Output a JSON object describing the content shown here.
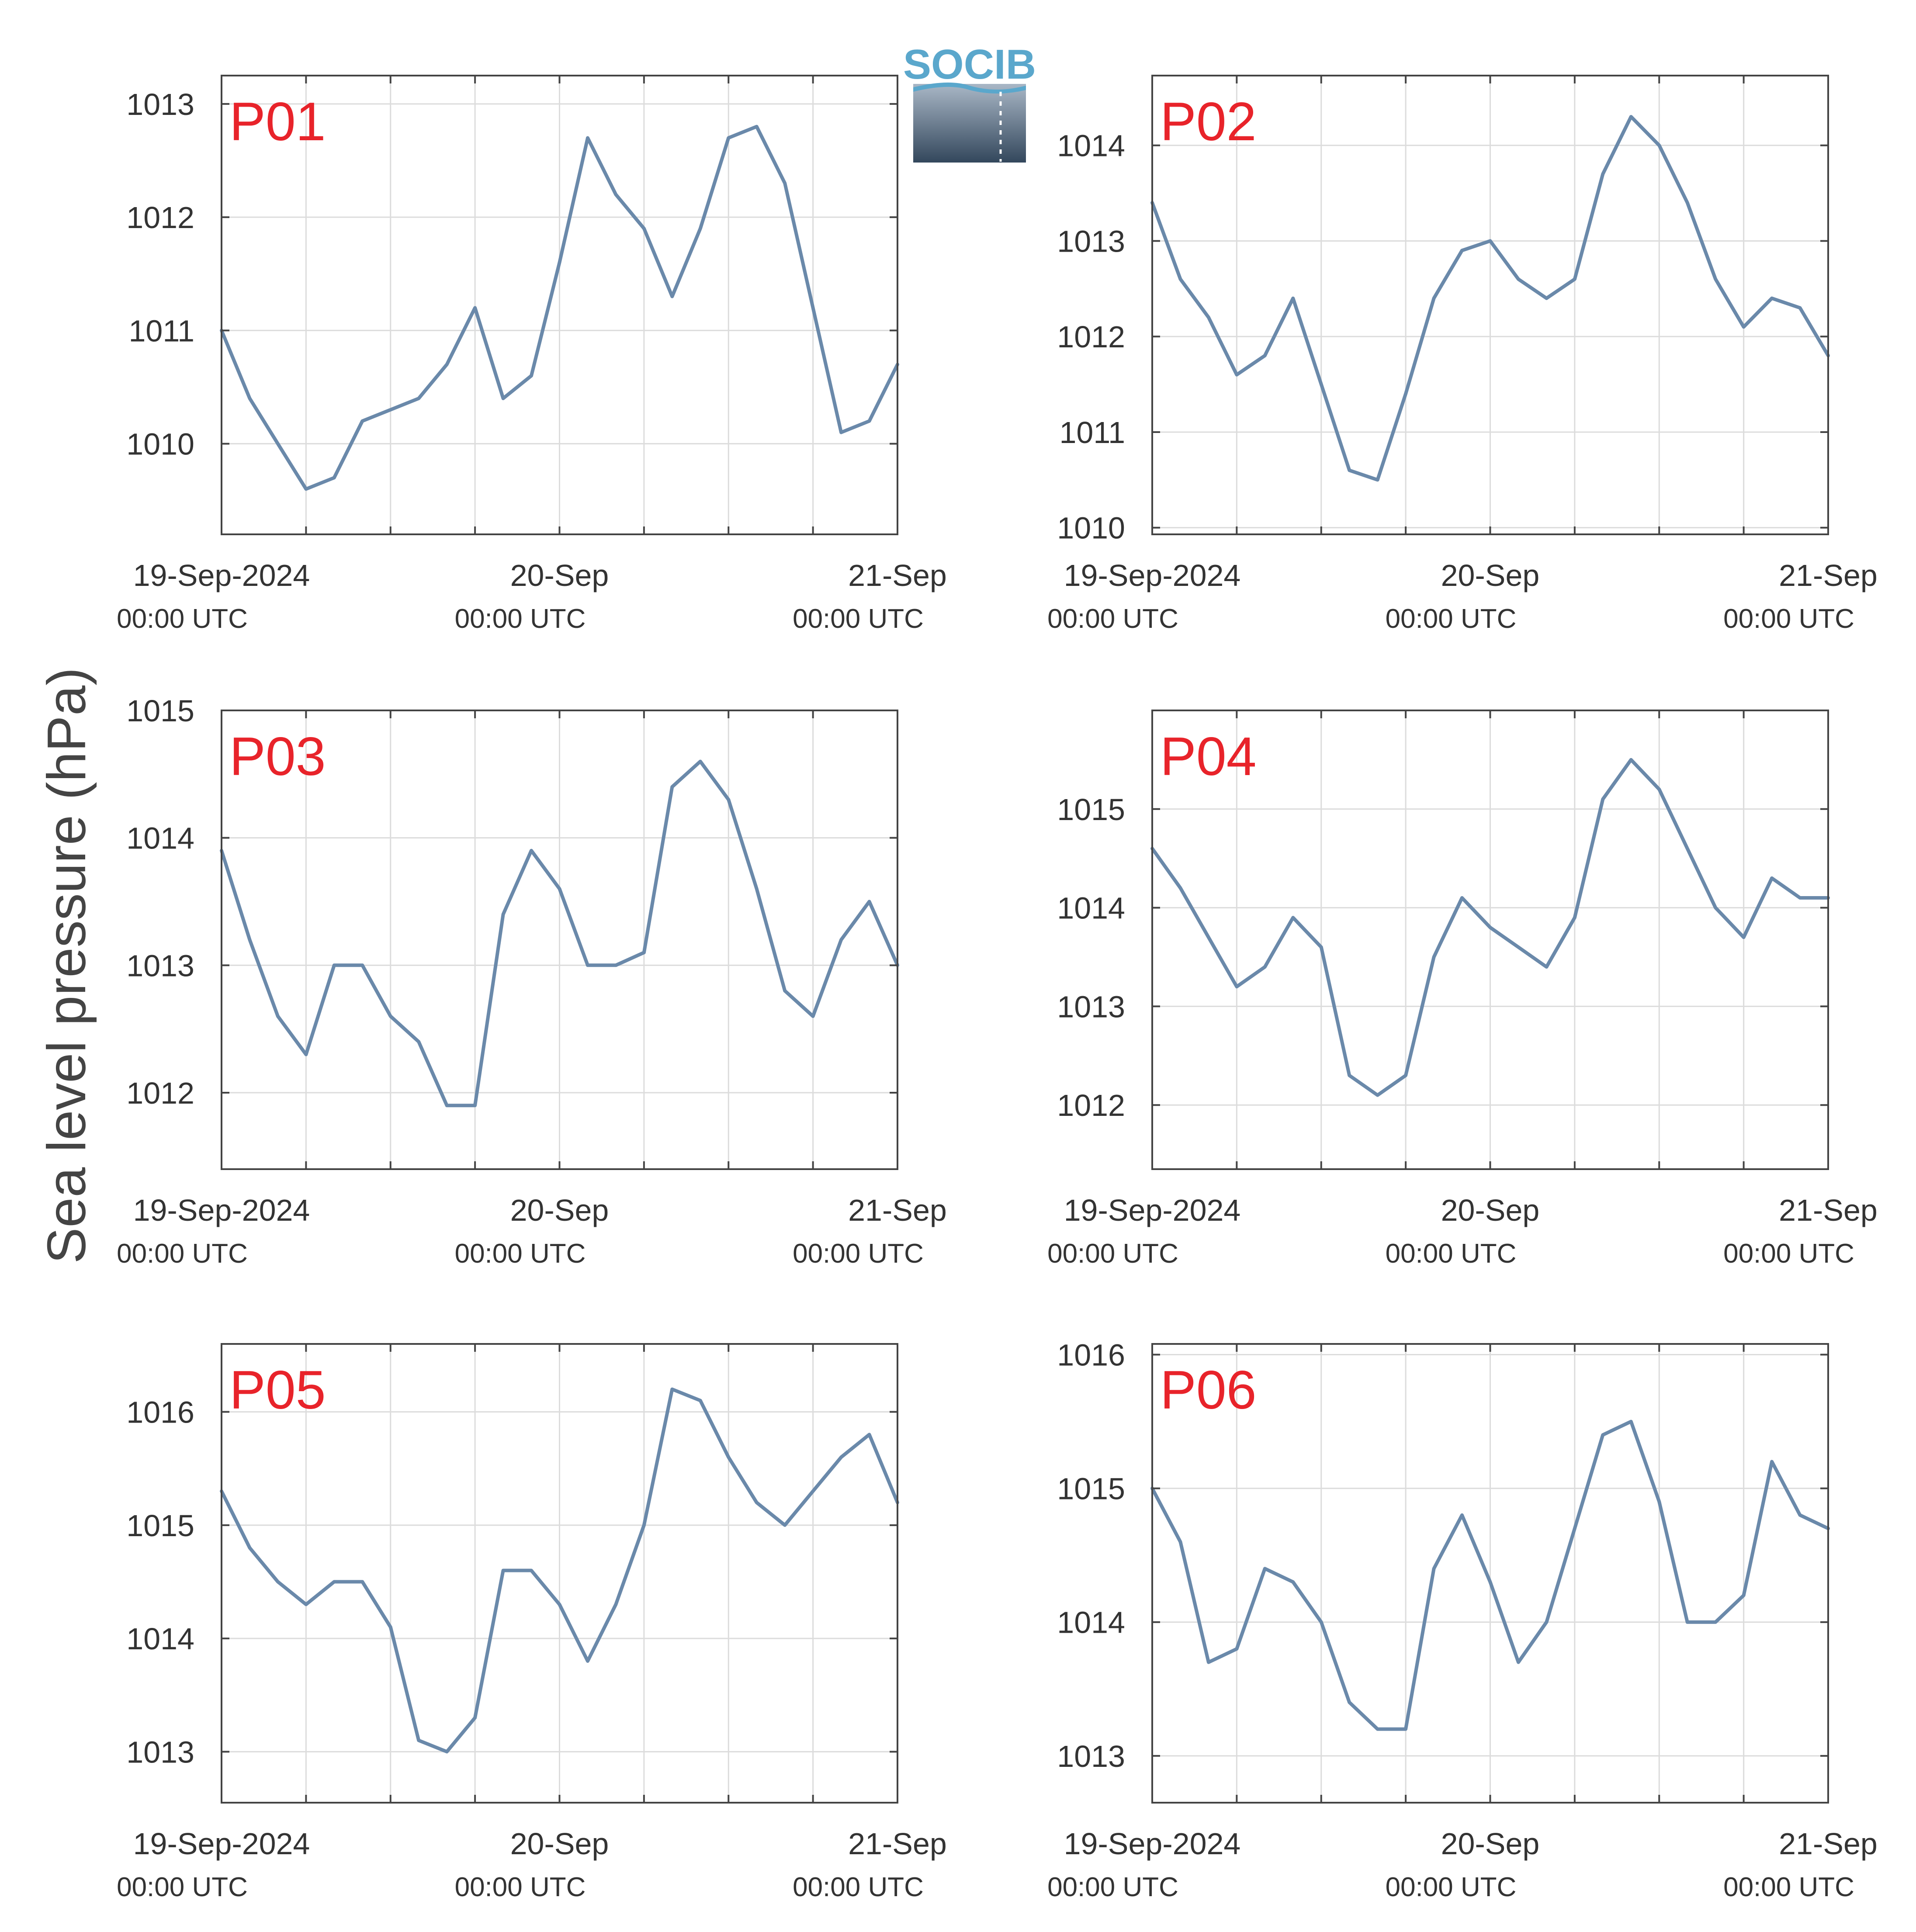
{
  "ylabel": "Sea level pressure (hPa)",
  "logo": {
    "text": "SOCIB"
  },
  "colors": {
    "line": "#6a89aa",
    "panel_label": "#e8232a",
    "grid": "#dcdcdc",
    "axis": "#444444",
    "logo_top": "#5aa7cc",
    "logo_bottom": "#33475c"
  },
  "x_ticks": [
    {
      "main": "19-Sep-2024",
      "sub": "00:00 UTC"
    },
    {
      "main": "20-Sep",
      "sub": "00:00 UTC"
    },
    {
      "main": "21-Sep",
      "sub": "00:00 UTC"
    }
  ],
  "chart_data": [
    {
      "type": "line",
      "title": "P01",
      "grid": true,
      "xlim": [
        "2024-09-19 00:00",
        "2024-09-21 00:00"
      ],
      "ylim": [
        1009.2,
        1013.25
      ],
      "yticks": [
        1010,
        1011,
        1012,
        1013
      ],
      "x_hours": [
        0,
        2,
        4,
        6,
        8,
        10,
        12,
        14,
        16,
        18,
        20,
        22,
        24,
        26,
        28,
        30,
        32,
        34,
        36,
        38,
        40,
        42,
        44,
        46,
        48
      ],
      "values": [
        1011.0,
        1010.4,
        1010.0,
        1009.6,
        1009.7,
        1010.2,
        1010.3,
        1010.4,
        1010.7,
        1011.2,
        1010.4,
        1010.6,
        1011.6,
        1012.7,
        1012.2,
        1011.9,
        1011.3,
        1011.9,
        1012.7,
        1012.8,
        1012.3,
        1011.2,
        1010.1,
        1010.2,
        1010.7
      ]
    },
    {
      "type": "line",
      "title": "P02",
      "grid": true,
      "xlim": [
        "2024-09-19 00:00",
        "2024-09-21 00:00"
      ],
      "ylim": [
        1009.93,
        1014.73
      ],
      "yticks": [
        1010,
        1011,
        1012,
        1013,
        1014
      ],
      "x_hours": [
        0,
        2,
        4,
        6,
        8,
        10,
        12,
        14,
        16,
        18,
        20,
        22,
        24,
        26,
        28,
        30,
        32,
        34,
        36,
        38,
        40,
        42,
        44,
        46,
        48
      ],
      "values": [
        1013.4,
        1012.6,
        1012.2,
        1011.6,
        1011.8,
        1012.4,
        1011.5,
        1010.6,
        1010.5,
        1011.4,
        1012.4,
        1012.9,
        1013.0,
        1012.6,
        1012.4,
        1012.6,
        1013.7,
        1014.3,
        1014.0,
        1013.4,
        1012.6,
        1012.1,
        1012.4,
        1012.3,
        1011.8
      ]
    },
    {
      "type": "line",
      "title": "P03",
      "grid": true,
      "xlim": [
        "2024-09-19 00:00",
        "2024-09-21 00:00"
      ],
      "ylim": [
        1011.4,
        1015.0
      ],
      "yticks": [
        1012,
        1013,
        1014,
        1015
      ],
      "x_hours": [
        0,
        2,
        4,
        6,
        8,
        10,
        12,
        14,
        16,
        18,
        20,
        22,
        24,
        26,
        28,
        30,
        32,
        34,
        36,
        38,
        40,
        42,
        44,
        46,
        48
      ],
      "values": [
        1013.9,
        1013.2,
        1012.6,
        1012.3,
        1013.0,
        1013.0,
        1012.6,
        1012.4,
        1011.9,
        1011.9,
        1013.4,
        1013.9,
        1013.6,
        1013.0,
        1013.0,
        1013.1,
        1014.4,
        1014.6,
        1014.3,
        1013.6,
        1012.8,
        1012.6,
        1013.2,
        1013.5,
        1013.0
      ]
    },
    {
      "type": "line",
      "title": "P04",
      "grid": true,
      "xlim": [
        "2024-09-19 00:00",
        "2024-09-21 00:00"
      ],
      "ylim": [
        1011.35,
        1016.0
      ],
      "yticks": [
        1012,
        1013,
        1014,
        1015
      ],
      "x_hours": [
        0,
        2,
        4,
        6,
        8,
        10,
        12,
        14,
        16,
        18,
        20,
        22,
        24,
        26,
        28,
        30,
        32,
        34,
        36,
        38,
        40,
        42,
        44,
        46,
        48
      ],
      "values": [
        1014.6,
        1014.2,
        1013.7,
        1013.2,
        1013.4,
        1013.9,
        1013.6,
        1012.3,
        1012.1,
        1012.3,
        1013.5,
        1014.1,
        1013.8,
        1013.6,
        1013.4,
        1013.9,
        1015.1,
        1015.5,
        1015.2,
        1014.6,
        1014.0,
        1013.7,
        1014.3,
        1014.1,
        1014.1
      ]
    },
    {
      "type": "line",
      "title": "P05",
      "grid": true,
      "xlim": [
        "2024-09-19 00:00",
        "2024-09-21 00:00"
      ],
      "ylim": [
        1012.55,
        1016.6
      ],
      "yticks": [
        1013,
        1014,
        1015,
        1016
      ],
      "x_hours": [
        0,
        2,
        4,
        6,
        8,
        10,
        12,
        14,
        16,
        18,
        20,
        22,
        24,
        26,
        28,
        30,
        32,
        34,
        36,
        38,
        40,
        42,
        44,
        46,
        48
      ],
      "values": [
        1015.3,
        1014.8,
        1014.5,
        1014.3,
        1014.5,
        1014.5,
        1014.1,
        1013.1,
        1013.0,
        1013.3,
        1014.6,
        1014.6,
        1014.3,
        1013.8,
        1014.3,
        1015.0,
        1016.2,
        1016.1,
        1015.6,
        1015.2,
        1015.0,
        1015.3,
        1015.6,
        1015.8,
        1015.2
      ]
    },
    {
      "type": "line",
      "title": "P06",
      "grid": true,
      "xlim": [
        "2024-09-19 00:00",
        "2024-09-21 00:00"
      ],
      "ylim": [
        1012.65,
        1016.08
      ],
      "yticks": [
        1013,
        1014,
        1015,
        1016
      ],
      "x_hours": [
        0,
        2,
        4,
        6,
        8,
        10,
        12,
        14,
        16,
        18,
        20,
        22,
        24,
        26,
        28,
        30,
        32,
        34,
        36,
        38,
        40,
        42,
        44,
        46,
        48
      ],
      "values": [
        1015.0,
        1014.6,
        1013.7,
        1013.8,
        1014.4,
        1014.3,
        1014.0,
        1013.4,
        1013.2,
        1013.2,
        1014.4,
        1014.8,
        1014.3,
        1013.7,
        1014.0,
        1014.7,
        1015.4,
        1015.5,
        1014.9,
        1014.0,
        1014.0,
        1014.2,
        1015.2,
        1014.8,
        1014.7
      ]
    }
  ]
}
